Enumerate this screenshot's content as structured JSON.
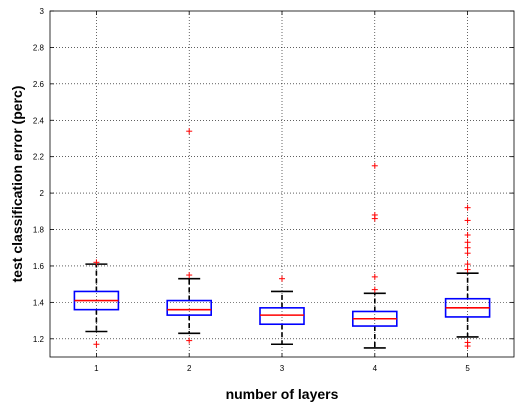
{
  "chart_data": {
    "type": "boxplot",
    "xlabel": "number of layers",
    "ylabel": "test classification error (perc)",
    "ylim": [
      1.1,
      3.0
    ],
    "yticks": [
      1.2,
      1.4,
      1.6,
      1.8,
      2.0,
      2.2,
      2.4,
      2.6,
      2.8,
      3.0
    ],
    "ytick_labels": [
      "1.2",
      "1.4",
      "1.6",
      "1.8",
      "2",
      "2.2",
      "2.4",
      "2.6",
      "2.8",
      "3"
    ],
    "categories": [
      "1",
      "2",
      "3",
      "4",
      "5"
    ],
    "grid": true,
    "colors": {
      "box": "#0000ff",
      "median": "#ff0000",
      "whisker": "#000000",
      "outlier": "#ff0000"
    },
    "boxes": [
      {
        "category": "1",
        "whisker_low": 1.24,
        "q1": 1.36,
        "median": 1.41,
        "q3": 1.46,
        "whisker_high": 1.61,
        "outliers": [
          1.17,
          1.62
        ]
      },
      {
        "category": "2",
        "whisker_low": 1.23,
        "q1": 1.33,
        "median": 1.36,
        "q3": 1.41,
        "whisker_high": 1.53,
        "outliers": [
          1.19,
          1.55,
          2.34
        ]
      },
      {
        "category": "3",
        "whisker_low": 1.17,
        "q1": 1.28,
        "median": 1.33,
        "q3": 1.37,
        "whisker_high": 1.46,
        "outliers": [
          1.53
        ]
      },
      {
        "category": "4",
        "whisker_low": 1.15,
        "q1": 1.27,
        "median": 1.31,
        "q3": 1.35,
        "whisker_high": 1.45,
        "outliers": [
          1.47,
          1.54,
          1.86,
          1.88,
          2.15
        ]
      },
      {
        "category": "5",
        "whisker_low": 1.21,
        "q1": 1.32,
        "median": 1.37,
        "q3": 1.42,
        "whisker_high": 1.56,
        "outliers": [
          1.16,
          1.18,
          1.58,
          1.61,
          1.67,
          1.7,
          1.73,
          1.77,
          1.85,
          1.92
        ]
      }
    ]
  }
}
